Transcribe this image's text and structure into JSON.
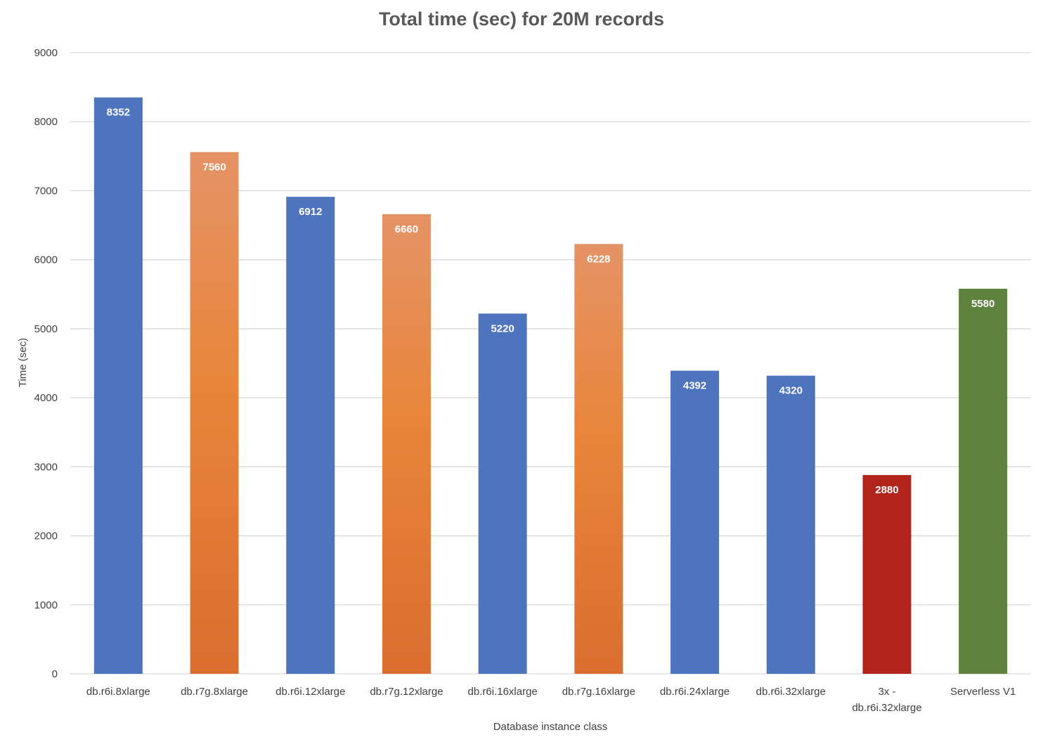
{
  "chart_data": {
    "type": "bar",
    "title": "Total time (sec) for 20M records",
    "xlabel": "Database instance class",
    "ylabel": "Time (sec)",
    "ylim": [
      0,
      9000
    ],
    "yticks": [
      0,
      1000,
      2000,
      3000,
      4000,
      5000,
      6000,
      7000,
      8000,
      9000
    ],
    "grid": true,
    "categories": [
      [
        "db.r6i.8xlarge"
      ],
      [
        "db.r7g.8xlarge"
      ],
      [
        "db.r6i.12xlarge"
      ],
      [
        "db.r7g.12xlarge"
      ],
      [
        "db.r6i.16xlarge"
      ],
      [
        "db.r7g.16xlarge"
      ],
      [
        "db.r6i.24xlarge"
      ],
      [
        "db.r6i.32xlarge"
      ],
      [
        "3x -",
        "db.r6i.32xlarge"
      ],
      [
        "Serverless V1"
      ]
    ],
    "values": [
      8352,
      7560,
      6912,
      6660,
      5220,
      6228,
      4392,
      4320,
      2880,
      5580
    ],
    "bar_colors": [
      "blue",
      "orange",
      "blue",
      "orange",
      "blue",
      "orange",
      "blue",
      "blue",
      "red",
      "green"
    ],
    "colors": {
      "blue": "#4e74be",
      "orange": "#e5802f",
      "red": "#b0241c",
      "green": "#5e823d",
      "grid": "#d9d9d9"
    }
  }
}
